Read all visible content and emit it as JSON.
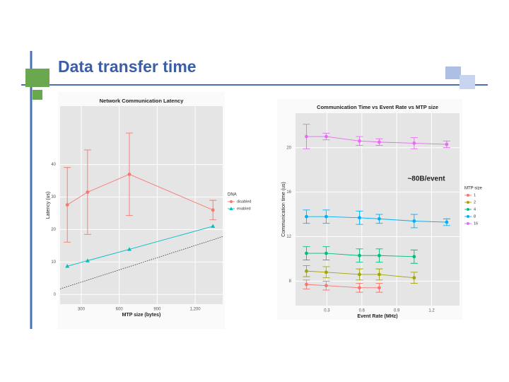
{
  "title": "Data transfer time",
  "chart_data": [
    {
      "type": "line",
      "title": "Network Communication Latency",
      "x_label": "MTP size (bytes)",
      "y_label": "Latency (us)",
      "xlim": [
        133,
        1417
      ],
      "xticks": [
        300,
        600,
        900,
        {
          "value": 1200,
          "label": "1,200"
        }
      ],
      "ylim": [
        -3,
        58
      ],
      "yticks": [
        0,
        10,
        20,
        30,
        40
      ],
      "grid": true,
      "legend_title": "DNA",
      "series": [
        {
          "name": "disabled",
          "color": "#f8766d",
          "marker": "circle",
          "x": [
            190,
            350,
            680,
            1340
          ],
          "values": [
            27.6,
            31.5,
            37,
            26
          ],
          "errors": [
            11.5,
            13,
            12.7,
            3
          ]
        },
        {
          "name": "enabled",
          "color": "#00bfc4",
          "marker": "triangle",
          "x": [
            190,
            350,
            680,
            1340
          ],
          "values": [
            8.7,
            10.4,
            13.9,
            21
          ]
        }
      ],
      "reference_line": {
        "x": [
          133,
          1417
        ],
        "values": [
          1.7,
          17.8
        ]
      }
    },
    {
      "type": "line",
      "title": "Communication Time vs Event Rate vs MTP size",
      "x_label": "Event Rate (MHz)",
      "y_label": "Communication time (us)",
      "xlim": [
        0.03,
        1.44
      ],
      "xticks": [
        0.3,
        0.6,
        0.9,
        1.2
      ],
      "ylim": [
        5.8,
        23.1
      ],
      "yticks": [
        8,
        12,
        16,
        20
      ],
      "grid": true,
      "annotation": "~80B/event",
      "legend_title": "MTP size",
      "series": [
        {
          "name": "1",
          "color": "#f8766d",
          "marker": "circle",
          "x": [
            0.124,
            0.294,
            0.58,
            0.75
          ],
          "values": [
            7.7,
            7.6,
            7.4,
            7.4
          ],
          "errors": [
            0.4,
            0.4,
            0.4,
            0.4
          ]
        },
        {
          "name": "2",
          "color": "#a3a500",
          "marker": "circle",
          "x": [
            0.124,
            0.294,
            0.58,
            0.75,
            1.05
          ],
          "values": [
            8.9,
            8.8,
            8.6,
            8.6,
            8.3
          ],
          "errors": [
            0.5,
            0.5,
            0.5,
            0.5,
            0.5
          ]
        },
        {
          "name": "4",
          "color": "#00bf7d",
          "marker": "circle",
          "x": [
            0.124,
            0.294,
            0.58,
            0.75,
            1.05
          ],
          "values": [
            10.5,
            10.5,
            10.3,
            10.3,
            10.2
          ],
          "errors": [
            0.6,
            0.6,
            0.6,
            0.6,
            0.6
          ]
        },
        {
          "name": "8",
          "color": "#00b0f6",
          "marker": "circle",
          "x": [
            0.124,
            0.294,
            0.58,
            0.75,
            1.05,
            1.33
          ],
          "values": [
            13.8,
            13.8,
            13.7,
            13.6,
            13.4,
            13.3
          ],
          "errors": [
            0.6,
            0.6,
            0.6,
            0.4,
            0.6,
            0.3
          ]
        },
        {
          "name": "16",
          "color": "#e76bf3",
          "marker": "circle",
          "x": [
            0.124,
            0.294,
            0.58,
            0.75,
            1.05,
            1.33
          ],
          "values": [
            21.0,
            21.0,
            20.6,
            20.5,
            20.4,
            20.3
          ],
          "errors": [
            1.1,
            0.3,
            0.4,
            0.3,
            0.5,
            0.3
          ]
        }
      ]
    }
  ]
}
